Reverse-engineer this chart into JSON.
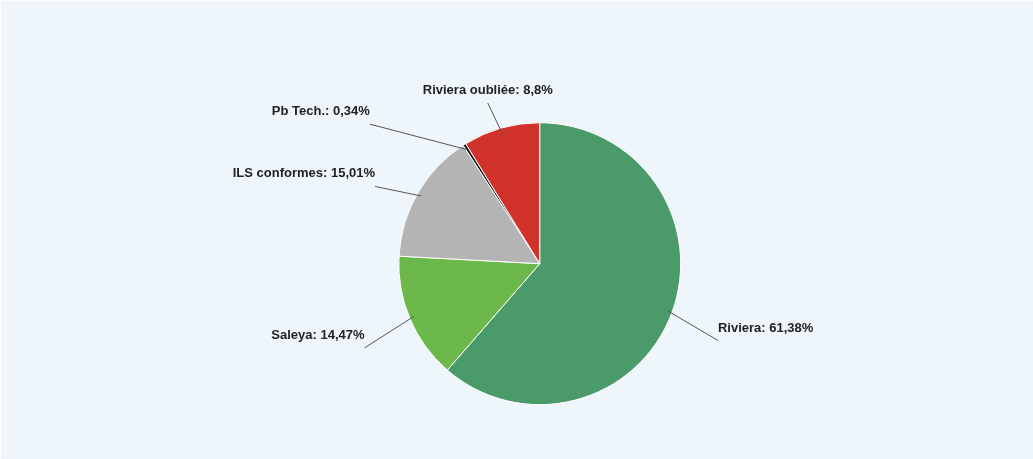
{
  "chart_data": {
    "type": "pie",
    "categories": [
      "Riviera",
      "Saleya",
      "ILS conformes",
      "Pb Tech.",
      "Riviera oubliée"
    ],
    "values": [
      61.38,
      14.47,
      15.01,
      0.34,
      8.8
    ],
    "colors": [
      "#4a9a6a",
      "#6cb84a",
      "#b4b4b4",
      "#111111",
      "#d2322c"
    ],
    "value_labels": [
      "61,38%",
      "14,47%",
      "15,01%",
      "0,34%",
      "8,8%"
    ]
  }
}
